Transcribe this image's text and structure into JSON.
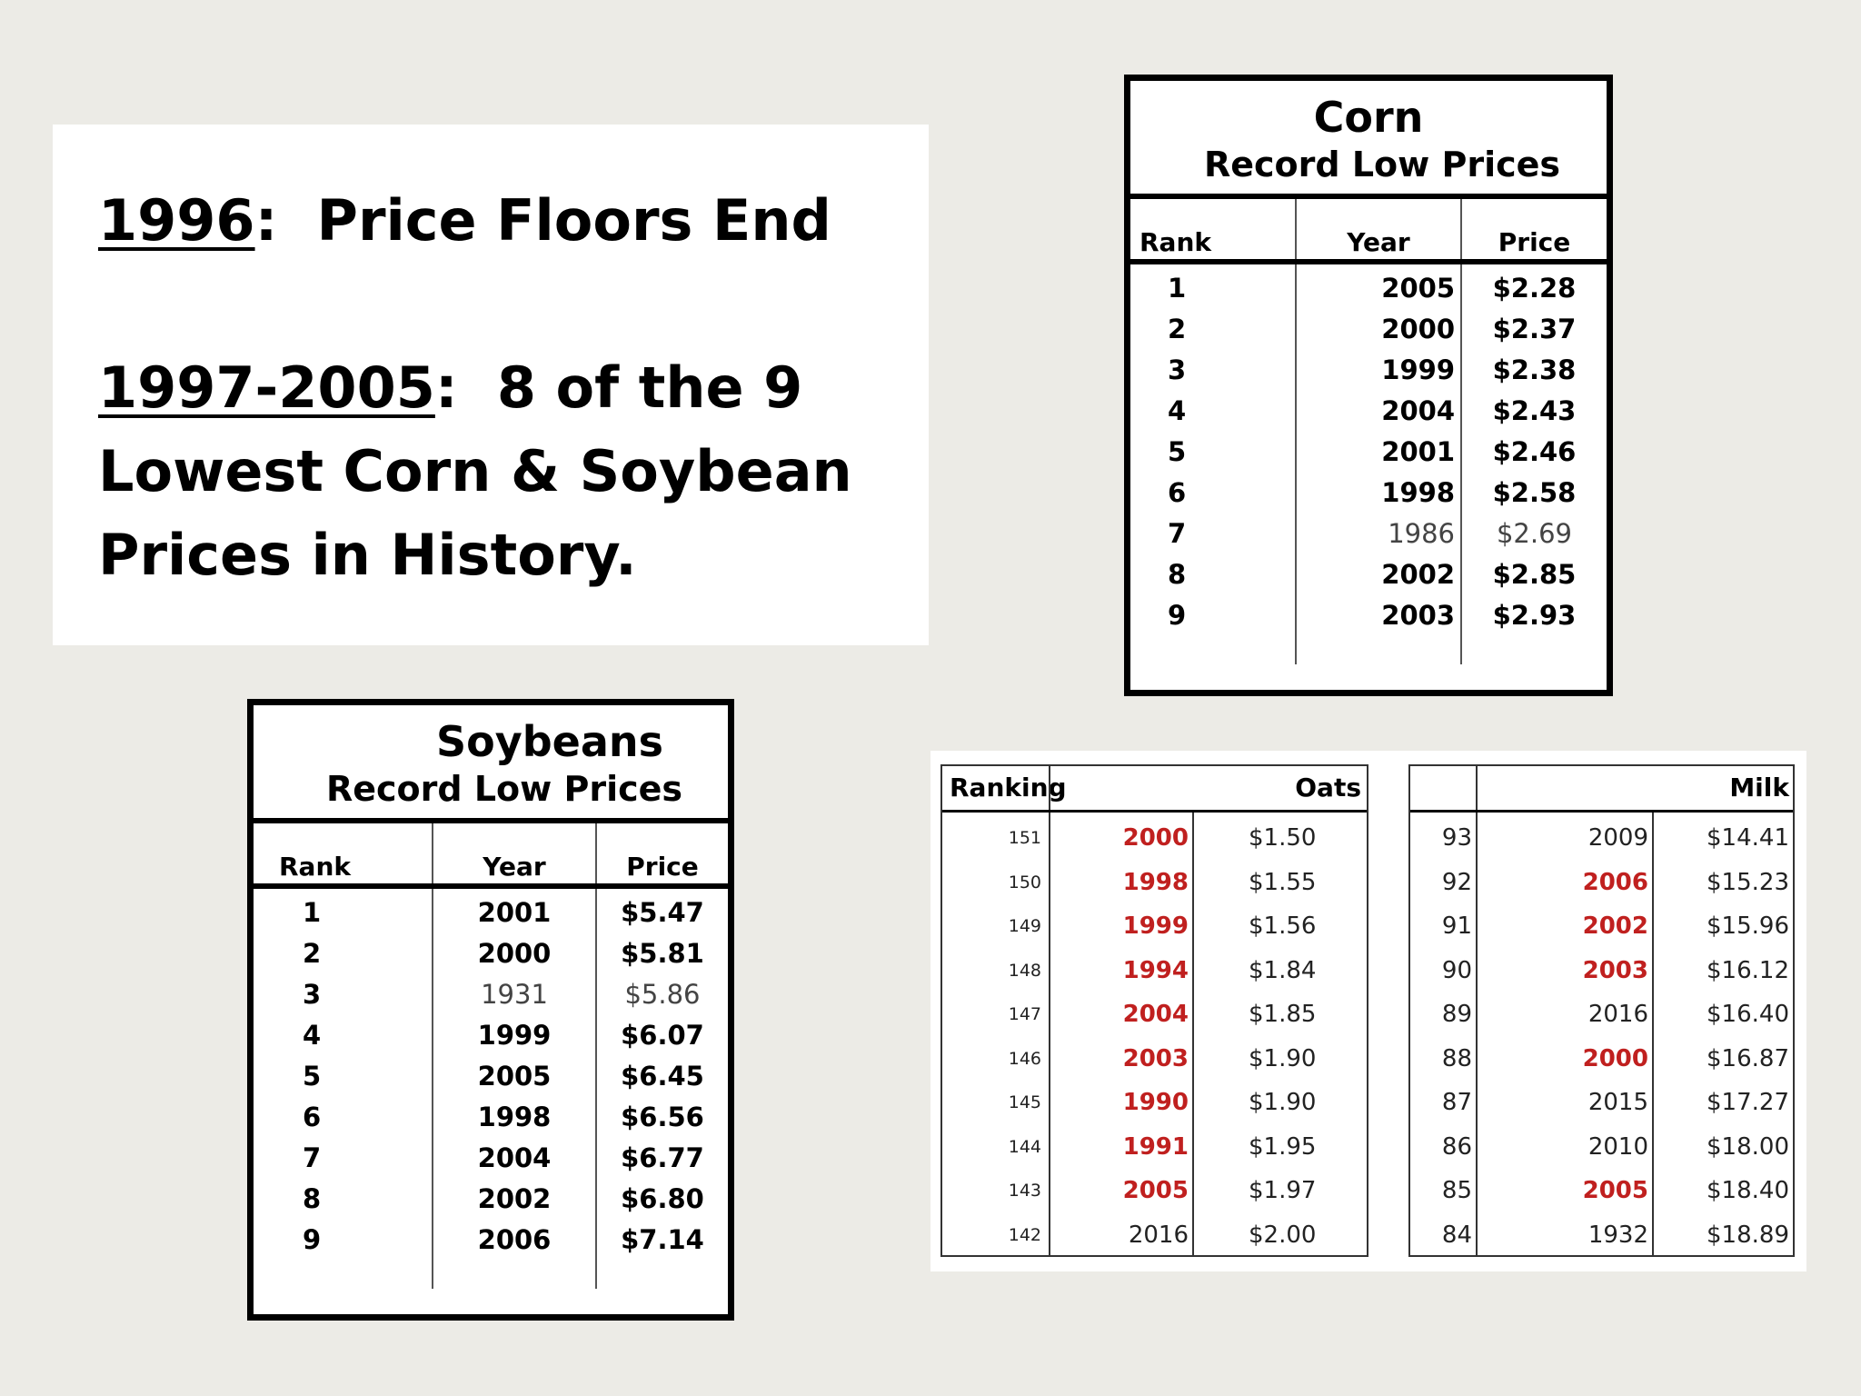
{
  "headline": {
    "year1": "1996",
    "line1_rest": ":  Price Floors End",
    "year2": "1997-2005",
    "line2_rest": ":  8 of the 9",
    "line3": "Lowest Corn & Soybean",
    "line4": "Prices in History."
  },
  "corn": {
    "title": "Corn",
    "subtitle": "Record Low Prices",
    "headers": {
      "rank": "Rank",
      "year": "Year",
      "price": "Price"
    },
    "rows": [
      {
        "rank": "1",
        "year": "2005",
        "price": "$2.28",
        "light": false
      },
      {
        "rank": "2",
        "year": "2000",
        "price": "$2.37",
        "light": false
      },
      {
        "rank": "3",
        "year": "1999",
        "price": "$2.38",
        "light": false
      },
      {
        "rank": "4",
        "year": "2004",
        "price": "$2.43",
        "light": false
      },
      {
        "rank": "5",
        "year": "2001",
        "price": "$2.46",
        "light": false
      },
      {
        "rank": "6",
        "year": "1998",
        "price": "$2.58",
        "light": false
      },
      {
        "rank": "7",
        "year": "1986",
        "price": "$2.69",
        "light": true
      },
      {
        "rank": "8",
        "year": "2002",
        "price": "$2.85",
        "light": false
      },
      {
        "rank": "9",
        "year": "2003",
        "price": "$2.93",
        "light": false
      }
    ]
  },
  "soybeans": {
    "title": "Soybeans",
    "subtitle": "Record Low Prices",
    "headers": {
      "rank": "Rank",
      "year": "Year",
      "price": "Price"
    },
    "rows": [
      {
        "rank": "1",
        "year": "2001",
        "price": "$5.47",
        "light": false
      },
      {
        "rank": "2",
        "year": "2000",
        "price": "$5.81",
        "light": false
      },
      {
        "rank": "3",
        "year": "1931",
        "price": "$5.86",
        "light": true
      },
      {
        "rank": "4",
        "year": "1999",
        "price": "$6.07",
        "light": false
      },
      {
        "rank": "5",
        "year": "2005",
        "price": "$6.45",
        "light": false
      },
      {
        "rank": "6",
        "year": "1998",
        "price": "$6.56",
        "light": false
      },
      {
        "rank": "7",
        "year": "2004",
        "price": "$6.77",
        "light": false
      },
      {
        "rank": "8",
        "year": "2002",
        "price": "$6.80",
        "light": false
      },
      {
        "rank": "9",
        "year": "2006",
        "price": "$7.14",
        "light": false
      }
    ]
  },
  "oats": {
    "headers": {
      "ranking": "Ranking",
      "name": "Oats"
    },
    "rows": [
      {
        "rank": "151",
        "year": "2000",
        "price": "$1.50",
        "red": true
      },
      {
        "rank": "150",
        "year": "1998",
        "price": "$1.55",
        "red": true
      },
      {
        "rank": "149",
        "year": "1999",
        "price": "$1.56",
        "red": true
      },
      {
        "rank": "148",
        "year": "1994",
        "price": "$1.84",
        "red": true
      },
      {
        "rank": "147",
        "year": "2004",
        "price": "$1.85",
        "red": true
      },
      {
        "rank": "146",
        "year": "2003",
        "price": "$1.90",
        "red": true
      },
      {
        "rank": "145",
        "year": "1990",
        "price": "$1.90",
        "red": true
      },
      {
        "rank": "144",
        "year": "1991",
        "price": "$1.95",
        "red": true
      },
      {
        "rank": "143",
        "year": "2005",
        "price": "$1.97",
        "red": true
      },
      {
        "rank": "142",
        "year": "2016",
        "price": "$2.00",
        "red": false
      }
    ]
  },
  "milk": {
    "headers": {
      "ranking": "",
      "name": "Milk"
    },
    "rows": [
      {
        "rank": "93",
        "year": "2009",
        "price": "$14.41",
        "red": false
      },
      {
        "rank": "92",
        "year": "2006",
        "price": "$15.23",
        "red": true
      },
      {
        "rank": "91",
        "year": "2002",
        "price": "$15.96",
        "red": true
      },
      {
        "rank": "90",
        "year": "2003",
        "price": "$16.12",
        "red": true
      },
      {
        "rank": "89",
        "year": "2016",
        "price": "$16.40",
        "red": false
      },
      {
        "rank": "88",
        "year": "2000",
        "price": "$16.87",
        "red": true
      },
      {
        "rank": "87",
        "year": "2015",
        "price": "$17.27",
        "red": false
      },
      {
        "rank": "86",
        "year": "2010",
        "price": "$18.00",
        "red": false
      },
      {
        "rank": "85",
        "year": "2005",
        "price": "$18.40",
        "red": true
      },
      {
        "rank": "84",
        "year": "1932",
        "price": "$18.89",
        "red": false
      }
    ]
  },
  "colors": {
    "highlight_red": "#c0201f",
    "background": "#ecebe6"
  }
}
